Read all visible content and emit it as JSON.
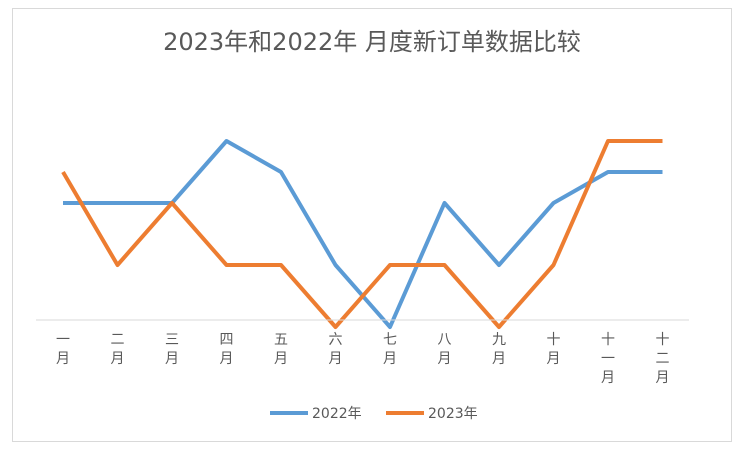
{
  "chart_data": {
    "type": "line",
    "title": "2023年和2022年 月度新订单数据比较",
    "categories": [
      "一月",
      "二月",
      "三月",
      "四月",
      "五月",
      "六月",
      "七月",
      "八月",
      "九月",
      "十月",
      "十一月",
      "十二月"
    ],
    "series": [
      {
        "name": "2022年",
        "color": "#5b9bd5",
        "values": [
          3,
          3,
          3,
          5,
          4,
          1,
          -1,
          3,
          1,
          3,
          4,
          4
        ]
      },
      {
        "name": "2023年",
        "color": "#ed7d31",
        "values": [
          4,
          1,
          3,
          1,
          1,
          -1,
          1,
          1,
          -1,
          1,
          5,
          5
        ]
      }
    ],
    "ylim": [
      -2,
      8
    ],
    "grid": false,
    "legend_position": "bottom"
  }
}
